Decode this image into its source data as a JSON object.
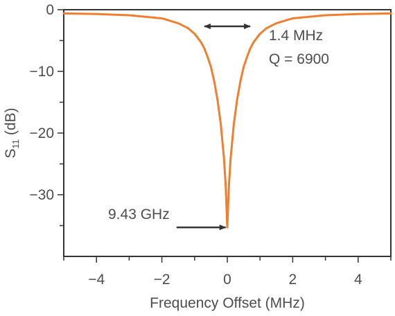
{
  "chart_data": {
    "type": "line",
    "xlabel": "Frequency Offset (MHz)",
    "ylabel_main": "S",
    "ylabel_sub": "11",
    "ylabel_unit": " (dB)",
    "xlim": [
      -5,
      5
    ],
    "ylim": [
      -40,
      0
    ],
    "xticks": [
      -4,
      -2,
      0,
      2,
      4
    ],
    "xtick_labels": [
      "−4",
      "−2",
      "0",
      "2",
      "4"
    ],
    "yticks": [
      0,
      -10,
      -20,
      -30
    ],
    "ytick_labels": [
      "0",
      "−10",
      "−20",
      "−30"
    ],
    "grid": false,
    "series": [
      {
        "color": "#F07E2E",
        "x": [
          -5,
          -4,
          -3,
          -2,
          -1.5,
          -1.2,
          -1,
          -0.8,
          -0.7,
          -0.6,
          -0.5,
          -0.4,
          -0.3,
          -0.2,
          -0.1,
          -0.05,
          -0.02,
          0,
          0.02,
          0.05,
          0.1,
          0.2,
          0.3,
          0.4,
          0.5,
          0.6,
          0.7,
          0.8,
          1,
          1.2,
          1.5,
          2,
          3,
          4,
          5
        ],
        "y": [
          -0.6,
          -0.7,
          -0.9,
          -1.4,
          -2.2,
          -3.0,
          -3.9,
          -5.3,
          -6.3,
          -7.7,
          -9.3,
          -11.6,
          -14.6,
          -18.5,
          -24.2,
          -28.5,
          -32.5,
          -35.3,
          -32.5,
          -28.5,
          -24.2,
          -18.5,
          -14.6,
          -11.6,
          -9.3,
          -7.7,
          -6.3,
          -5.3,
          -3.9,
          -3.0,
          -2.2,
          -1.4,
          -0.9,
          -0.7,
          -0.6
        ]
      }
    ],
    "annotations": {
      "linewidth_label": "1.4 MHz",
      "q_label": "Q = 6900",
      "freq_label": "9.43 GHz",
      "linewidth_span": [
        -0.7,
        0.7
      ],
      "linewidth_level": -2.7,
      "freq_arrow_level": -35.3
    },
    "colors": {
      "curve": "#F07E2E",
      "axes": "#333333",
      "text": "#4d4d4d"
    }
  }
}
